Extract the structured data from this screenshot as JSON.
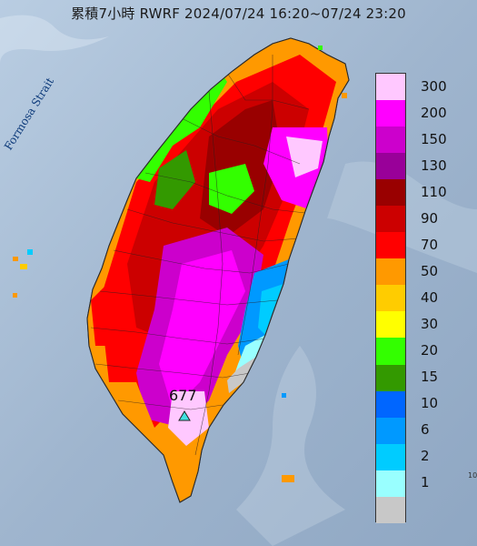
{
  "title": "累積7小時 RWRF 2024/07/24 16:20~07/24 23:20",
  "map": {
    "strait_label": "Formosa Strait",
    "max_value_label": "677",
    "max_marker": "triangle-marker-icon",
    "edge_text": "10"
  },
  "legend": {
    "items": [
      {
        "label": "300",
        "color": "#ffc8ff"
      },
      {
        "label": "200",
        "color": "#ff00ff"
      },
      {
        "label": "150",
        "color": "#cc00cc"
      },
      {
        "label": "130",
        "color": "#990099"
      },
      {
        "label": "110",
        "color": "#990000"
      },
      {
        "label": "90",
        "color": "#cc0000"
      },
      {
        "label": "70",
        "color": "#ff0000"
      },
      {
        "label": "50",
        "color": "#ff9900"
      },
      {
        "label": "40",
        "color": "#ffcc00"
      },
      {
        "label": "30",
        "color": "#ffff00"
      },
      {
        "label": "20",
        "color": "#33ff00"
      },
      {
        "label": "15",
        "color": "#339900"
      },
      {
        "label": "10",
        "color": "#0066ff"
      },
      {
        "label": "6",
        "color": "#0099ff"
      },
      {
        "label": "2",
        "color": "#00ccff"
      },
      {
        "label": "1",
        "color": "#99ffff"
      },
      {
        "label": "",
        "color": "#c8c8c8"
      }
    ]
  }
}
